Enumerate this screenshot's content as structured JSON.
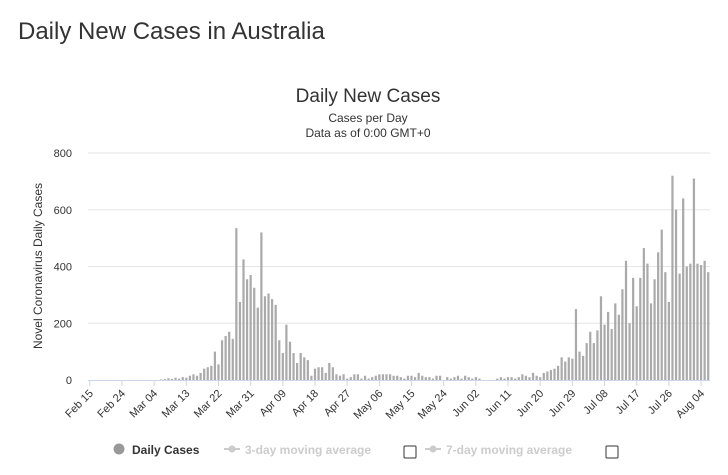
{
  "page": {
    "heading": "Daily New Cases in Australia"
  },
  "legend": {
    "daily": "Daily Cases",
    "avg3": "3-day moving average",
    "avg7": "7-day moving average"
  },
  "colors": {
    "bar": "#aaaaaa",
    "grid": "#e6e6e6",
    "legend_active": "#999999",
    "legend_inactive": "#cccccc"
  },
  "chart_data": {
    "type": "bar",
    "title": "Daily New Cases",
    "subtitle": "Cases per Day",
    "subtitle2": "Data as of 0:00 GMT+0",
    "ylabel": "Novel Coronavirus Daily Cases",
    "ylim": [
      0,
      800
    ],
    "y_ticks": [
      0,
      200,
      400,
      600,
      800
    ],
    "grid": true,
    "legend_position": "bottom",
    "x_ticks": [
      "Feb 15",
      "Feb 24",
      "Mar 04",
      "Mar 13",
      "Mar 22",
      "Mar 31",
      "Apr 09",
      "Apr 18",
      "Apr 27",
      "May 06",
      "May 15",
      "May 24",
      "Jun 02",
      "Jun 11",
      "Jun 20",
      "Jun 29",
      "Jul 08",
      "Jul 17",
      "Jul 26",
      "Aug 04"
    ],
    "series": [
      {
        "name": "Daily Cases",
        "values": [
          0,
          0,
          0,
          0,
          0,
          0,
          0,
          0,
          0,
          0,
          0,
          0,
          0,
          0,
          0,
          0,
          0,
          0,
          0,
          0,
          2,
          3,
          6,
          4,
          8,
          5,
          10,
          8,
          15,
          20,
          15,
          25,
          40,
          45,
          50,
          100,
          55,
          140,
          155,
          170,
          145,
          535,
          275,
          425,
          355,
          370,
          325,
          255,
          520,
          295,
          305,
          285,
          265,
          140,
          95,
          195,
          135,
          95,
          60,
          95,
          80,
          70,
          15,
          40,
          45,
          45,
          25,
          60,
          45,
          20,
          15,
          20,
          5,
          10,
          20,
          20,
          5,
          15,
          5,
          10,
          15,
          20,
          20,
          20,
          20,
          15,
          15,
          10,
          5,
          15,
          15,
          10,
          25,
          15,
          10,
          10,
          5,
          15,
          15,
          0,
          10,
          5,
          10,
          15,
          5,
          15,
          10,
          5,
          10,
          5,
          0,
          0,
          0,
          0,
          5,
          10,
          5,
          10,
          10,
          5,
          10,
          20,
          15,
          10,
          25,
          15,
          10,
          25,
          30,
          35,
          40,
          50,
          80,
          65,
          80,
          75,
          250,
          100,
          85,
          130,
          170,
          130,
          175,
          295,
          195,
          240,
          180,
          270,
          230,
          320,
          420,
          200,
          360,
          260,
          360,
          465,
          410,
          270,
          355,
          450,
          530,
          380,
          275,
          720,
          600,
          375,
          640,
          400,
          410,
          710,
          410,
          405,
          420,
          380
        ]
      }
    ]
  }
}
